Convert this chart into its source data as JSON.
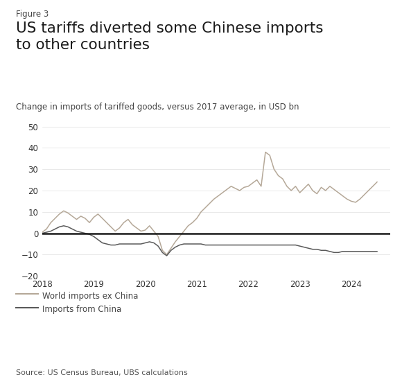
{
  "figure_label": "Figure 3",
  "title": "US tariffs diverted some Chinese imports\nto other countries",
  "subtitle": "Change in imports of tariffed goods, versus 2017 average, in USD bn",
  "source": "Source: US Census Bureau, UBS calculations",
  "ylim": [
    -20,
    55
  ],
  "yticks": [
    -20,
    -10,
    0,
    10,
    20,
    30,
    40,
    50
  ],
  "xlim_start": 2018.0,
  "xlim_end": 2024.75,
  "xtick_labels": [
    "2018",
    "2019",
    "2020",
    "2021",
    "2022",
    "2023",
    "2024"
  ],
  "xtick_positions": [
    2018,
    2019,
    2020,
    2021,
    2022,
    2023,
    2024
  ],
  "color_world": "#b5a898",
  "color_china": "#5a5a5a",
  "color_zeroline": "#1a1a1a",
  "legend_world": "World imports ex China",
  "legend_china": "Imports from China",
  "background_color": "#ffffff",
  "world_x": [
    2018.0,
    2018.083,
    2018.167,
    2018.25,
    2018.333,
    2018.417,
    2018.5,
    2018.583,
    2018.667,
    2018.75,
    2018.833,
    2018.917,
    2019.0,
    2019.083,
    2019.167,
    2019.25,
    2019.333,
    2019.417,
    2019.5,
    2019.583,
    2019.667,
    2019.75,
    2019.833,
    2019.917,
    2020.0,
    2020.083,
    2020.167,
    2020.25,
    2020.333,
    2020.417,
    2020.5,
    2020.583,
    2020.667,
    2020.75,
    2020.833,
    2020.917,
    2021.0,
    2021.083,
    2021.167,
    2021.25,
    2021.333,
    2021.417,
    2021.5,
    2021.583,
    2021.667,
    2021.75,
    2021.833,
    2021.917,
    2022.0,
    2022.083,
    2022.167,
    2022.25,
    2022.333,
    2022.417,
    2022.5,
    2022.583,
    2022.667,
    2022.75,
    2022.833,
    2022.917,
    2023.0,
    2023.083,
    2023.167,
    2023.25,
    2023.333,
    2023.417,
    2023.5,
    2023.583,
    2023.667,
    2023.75,
    2023.833,
    2023.917,
    2024.0,
    2024.083,
    2024.167,
    2024.25,
    2024.333,
    2024.417,
    2024.5
  ],
  "world_y": [
    0.5,
    2.0,
    5.0,
    7.0,
    9.0,
    10.5,
    9.5,
    8.0,
    6.5,
    8.0,
    7.0,
    5.0,
    7.5,
    9.0,
    7.0,
    5.0,
    3.0,
    1.0,
    2.5,
    5.0,
    6.5,
    4.0,
    2.5,
    1.0,
    1.5,
    3.5,
    1.0,
    -1.5,
    -8.0,
    -10.0,
    -7.0,
    -4.0,
    -1.5,
    1.0,
    3.5,
    5.0,
    7.0,
    10.0,
    12.0,
    14.0,
    16.0,
    17.5,
    19.0,
    20.5,
    22.0,
    21.0,
    20.0,
    21.5,
    22.0,
    23.5,
    25.0,
    22.0,
    38.0,
    36.5,
    30.0,
    27.0,
    25.5,
    22.0,
    20.0,
    22.0,
    19.0,
    21.0,
    23.0,
    20.0,
    18.5,
    21.5,
    20.0,
    22.0,
    20.5,
    19.0,
    17.5,
    16.0,
    15.0,
    14.5,
    16.0,
    18.0,
    20.0,
    22.0,
    24.0
  ],
  "china_x": [
    2018.0,
    2018.083,
    2018.167,
    2018.25,
    2018.333,
    2018.417,
    2018.5,
    2018.583,
    2018.667,
    2018.75,
    2018.833,
    2018.917,
    2019.0,
    2019.083,
    2019.167,
    2019.25,
    2019.333,
    2019.417,
    2019.5,
    2019.583,
    2019.667,
    2019.75,
    2019.833,
    2019.917,
    2020.0,
    2020.083,
    2020.167,
    2020.25,
    2020.333,
    2020.417,
    2020.5,
    2020.583,
    2020.667,
    2020.75,
    2020.833,
    2020.917,
    2021.0,
    2021.083,
    2021.167,
    2021.25,
    2021.333,
    2021.417,
    2021.5,
    2021.583,
    2021.667,
    2021.75,
    2021.833,
    2021.917,
    2022.0,
    2022.083,
    2022.167,
    2022.25,
    2022.333,
    2022.417,
    2022.5,
    2022.583,
    2022.667,
    2022.75,
    2022.833,
    2022.917,
    2023.0,
    2023.083,
    2023.167,
    2023.25,
    2023.333,
    2023.417,
    2023.5,
    2023.583,
    2023.667,
    2023.75,
    2023.833,
    2023.917,
    2024.0,
    2024.083,
    2024.167,
    2024.25,
    2024.333,
    2024.417,
    2024.5
  ],
  "china_y": [
    0.0,
    0.5,
    1.0,
    2.0,
    3.0,
    3.5,
    3.0,
    2.0,
    1.0,
    0.5,
    0.0,
    -0.5,
    -1.5,
    -3.0,
    -4.5,
    -5.0,
    -5.5,
    -5.5,
    -5.0,
    -5.0,
    -5.0,
    -5.0,
    -5.0,
    -5.0,
    -4.5,
    -4.0,
    -4.5,
    -6.0,
    -9.0,
    -10.5,
    -8.0,
    -6.5,
    -5.5,
    -5.0,
    -5.0,
    -5.0,
    -5.0,
    -5.0,
    -5.5,
    -5.5,
    -5.5,
    -5.5,
    -5.5,
    -5.5,
    -5.5,
    -5.5,
    -5.5,
    -5.5,
    -5.5,
    -5.5,
    -5.5,
    -5.5,
    -5.5,
    -5.5,
    -5.5,
    -5.5,
    -5.5,
    -5.5,
    -5.5,
    -5.5,
    -6.0,
    -6.5,
    -7.0,
    -7.5,
    -7.5,
    -8.0,
    -8.0,
    -8.5,
    -9.0,
    -9.0,
    -8.5,
    -8.5,
    -8.5,
    -8.5,
    -8.5,
    -8.5,
    -8.5,
    -8.5,
    -8.5
  ]
}
